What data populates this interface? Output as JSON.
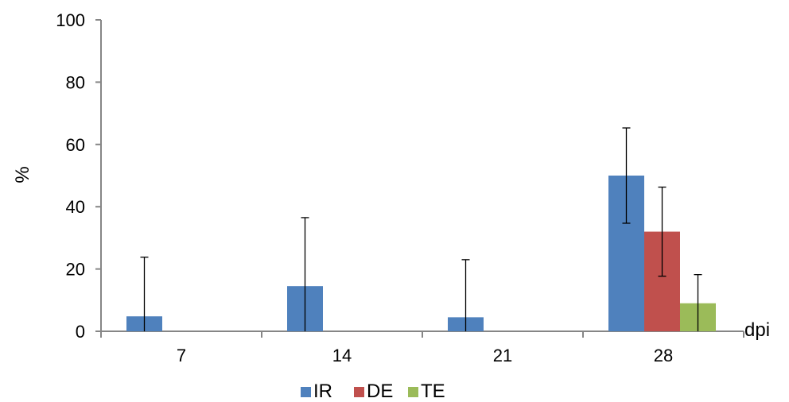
{
  "chart_data": {
    "type": "bar",
    "categories": [
      "7",
      "14",
      "21",
      "28"
    ],
    "series": [
      {
        "name": "IR",
        "values": [
          4.8,
          14.5,
          4.5,
          50
        ],
        "error": [
          19,
          22,
          18.5,
          15.3
        ],
        "color": "#4f81bd"
      },
      {
        "name": "DE",
        "values": [
          0,
          0,
          0,
          32
        ],
        "error": [
          0,
          0,
          0,
          14.3
        ],
        "color": "#c0504d"
      },
      {
        "name": "TE",
        "values": [
          0,
          0,
          0,
          9
        ],
        "error": [
          0,
          0,
          0,
          9.2
        ],
        "color": "#9bbb59"
      }
    ],
    "title": "",
    "xlabel": "dpi",
    "ylabel": "%",
    "ylim": [
      0,
      100
    ],
    "yticks": [
      "0",
      "20",
      "40",
      "60",
      "80",
      "100"
    ],
    "grid": false,
    "legend": "bottom",
    "error_bars": "upper"
  }
}
